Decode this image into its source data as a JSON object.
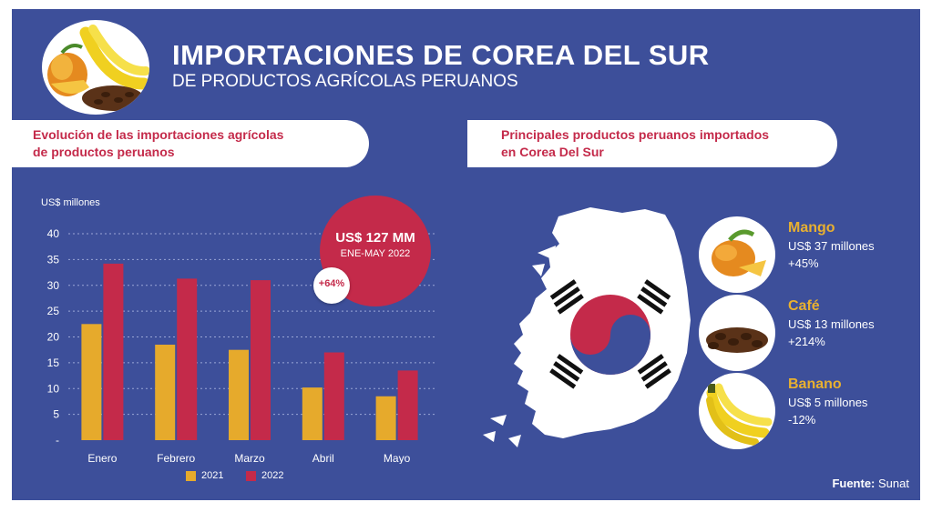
{
  "header": {
    "title": "IMPORTACIONES DE COREA DEL SUR",
    "subtitle": "DE PRODUCTOS AGRÍCOLAS PERUANOS"
  },
  "left_section": {
    "banner_line1": "Evolución de las importaciones agrícolas",
    "banner_line2": "de productos peruanos",
    "highlight_value": "US$ 127 MM",
    "highlight_period": "ENE-MAY 2022",
    "highlight_change": "+64%"
  },
  "chart_data": {
    "type": "bar",
    "ylabel": "US$ millones",
    "ylim": [
      0,
      40
    ],
    "yticks": [
      "-",
      "5",
      "10",
      "15",
      "20",
      "25",
      "30",
      "35",
      "40"
    ],
    "categories": [
      "Enero",
      "Febrero",
      "Marzo",
      "Abril",
      "Mayo"
    ],
    "series": [
      {
        "name": "2021",
        "values": [
          22.5,
          18.5,
          17.5,
          10.2,
          8.5
        ],
        "color": "#e6aa2c"
      },
      {
        "name": "2022",
        "values": [
          34.2,
          31.3,
          31.0,
          17.0,
          13.5
        ],
        "color": "#c42a4a"
      }
    ],
    "grid": true,
    "legend": "bottom"
  },
  "right_section": {
    "banner_line1": "Principales productos peruanos importados",
    "banner_line2": "en Corea Del Sur",
    "products": [
      {
        "name": "Mango",
        "value": "US$ 37 millones",
        "change": "+45%",
        "icon": "mango-icon"
      },
      {
        "name": "Café",
        "value": "US$ 13 millones",
        "change": "+214%",
        "icon": "coffee-beans-icon"
      },
      {
        "name": "Banano",
        "value": "US$ 5 millones",
        "change": "-12%",
        "icon": "banana-icon"
      }
    ]
  },
  "source": {
    "label": "Fuente:",
    "value": "Sunat"
  },
  "colors": {
    "background": "#3d4f9a",
    "accent_red": "#c42a4a",
    "accent_gold": "#e6aa2c",
    "product_name": "#e8b030"
  }
}
